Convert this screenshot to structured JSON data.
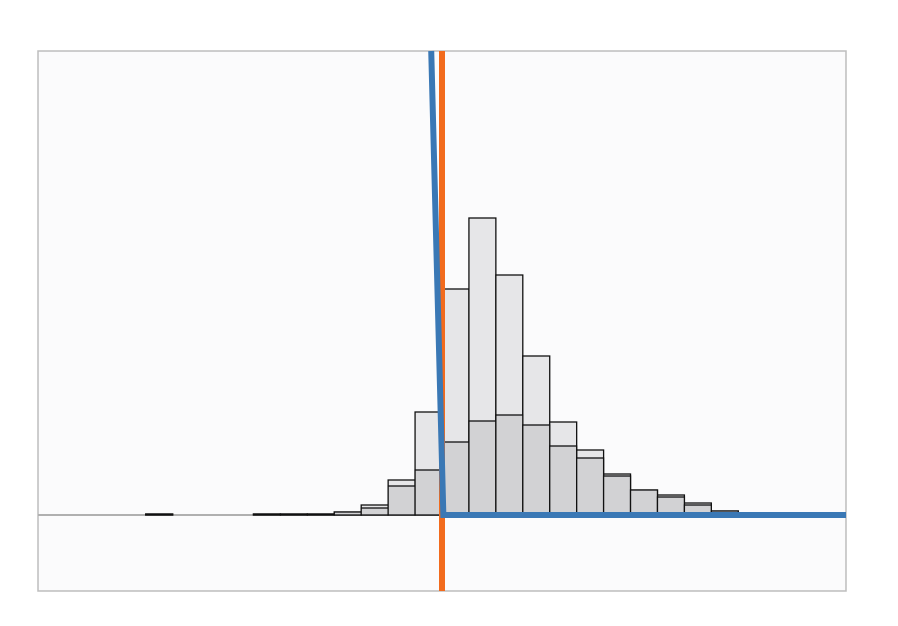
{
  "chart_data": {
    "type": "histogram",
    "bins": [
      -11,
      -10,
      -9,
      -8,
      -7,
      -6,
      -5,
      -4,
      -3,
      -2,
      -1,
      0,
      1,
      2,
      3,
      4,
      5,
      6,
      7,
      8,
      9,
      10,
      11
    ],
    "series": [
      {
        "color": "#e6e6e8",
        "values": [
          1,
          0,
          0,
          0,
          1,
          1,
          1,
          3,
          10,
          35,
          103,
          226,
          297,
          240,
          159,
          93,
          65,
          41,
          25,
          20,
          12,
          4
        ]
      },
      {
        "color": "#d2d2d4",
        "values": [
          1,
          0,
          0,
          0,
          1,
          1,
          1,
          3,
          7,
          29,
          45,
          73,
          94,
          100,
          90,
          69,
          57,
          39,
          25,
          18,
          10,
          4
        ]
      }
    ],
    "curve": {
      "color": "#3a78b5",
      "x": [
        -0.4,
        0.05,
        15
      ],
      "y": [
        464,
        0,
        0
      ]
    },
    "vline": {
      "value": 0,
      "color": "#f26b1d"
    },
    "hline": {
      "value": 0,
      "color": "#b0b0b0"
    },
    "xlim": [
      -15,
      15
    ],
    "ylim": [
      -76,
      464
    ]
  }
}
